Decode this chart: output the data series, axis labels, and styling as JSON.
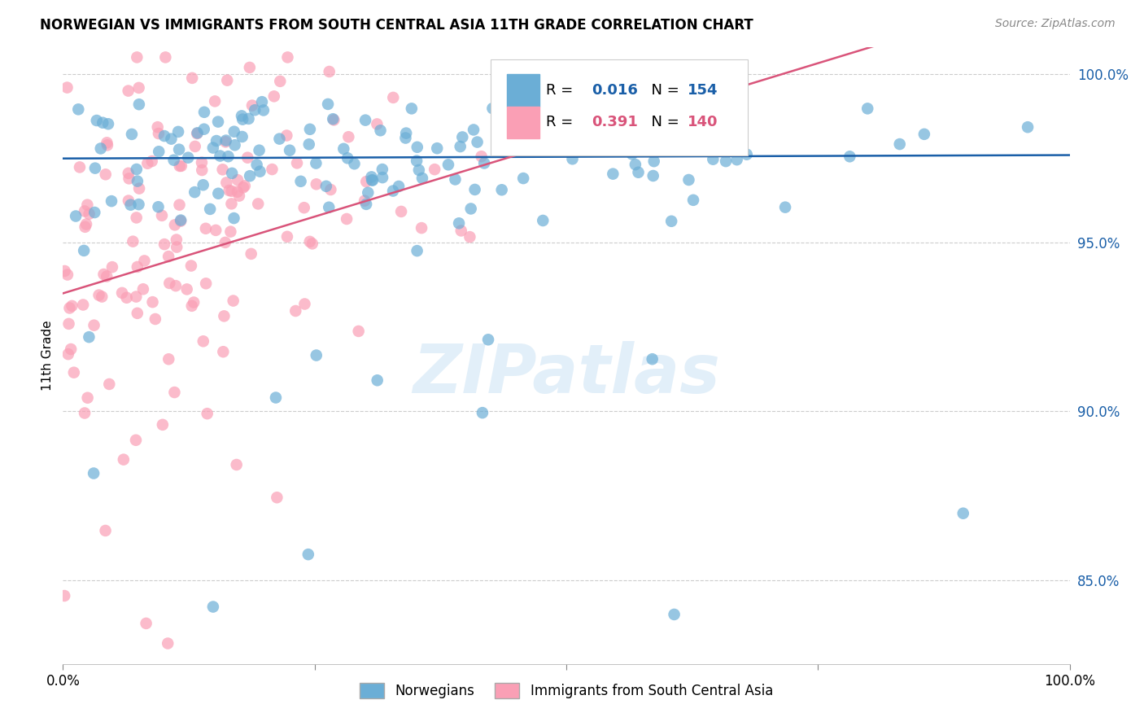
{
  "title": "NORWEGIAN VS IMMIGRANTS FROM SOUTH CENTRAL ASIA 11TH GRADE CORRELATION CHART",
  "source": "Source: ZipAtlas.com",
  "ylabel": "11th Grade",
  "xmin": 0.0,
  "xmax": 1.0,
  "ymin": 0.825,
  "ymax": 1.008,
  "yticks": [
    0.85,
    0.9,
    0.95,
    1.0
  ],
  "ytick_labels": [
    "85.0%",
    "90.0%",
    "95.0%",
    "100.0%"
  ],
  "r_norwegian": 0.016,
  "n_norwegian": 154,
  "r_immigrant": 0.391,
  "n_immigrant": 140,
  "color_norwegian": "#6baed6",
  "color_immigrant": "#fa9fb5",
  "color_line_norwegian": "#1a5fa8",
  "color_line_immigrant": "#d9547a",
  "legend_label_norwegian": "Norwegians",
  "legend_label_immigrant": "Immigrants from South Central Asia",
  "watermark": "ZIPatlas",
  "background_color": "#ffffff"
}
